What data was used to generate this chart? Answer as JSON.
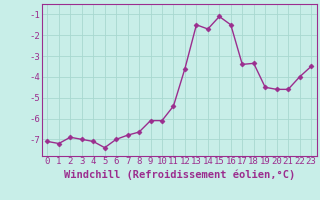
{
  "x": [
    0,
    1,
    2,
    3,
    4,
    5,
    6,
    7,
    8,
    9,
    10,
    11,
    12,
    13,
    14,
    15,
    16,
    17,
    18,
    19,
    20,
    21,
    22,
    23
  ],
  "y": [
    -7.1,
    -7.2,
    -6.9,
    -7.0,
    -7.1,
    -7.4,
    -7.0,
    -6.8,
    -6.65,
    -6.1,
    -6.1,
    -5.4,
    -3.6,
    -1.5,
    -1.7,
    -1.1,
    -1.5,
    -3.4,
    -3.35,
    -4.5,
    -4.6,
    -4.6,
    -4.0,
    -3.5
  ],
  "line_color": "#9B2D8E",
  "marker": "D",
  "marker_size": 2.5,
  "bg_color": "#C8EEE8",
  "grid_color": "#A8D8D0",
  "xlabel": "Windchill (Refroidissement éolien,°C)",
  "xlabel_fontsize": 7.5,
  "ylim": [
    -7.8,
    -0.5
  ],
  "xlim": [
    -0.5,
    23.5
  ],
  "yticks": [
    -7,
    -6,
    -5,
    -4,
    -3,
    -2,
    -1
  ],
  "xticks": [
    0,
    1,
    2,
    3,
    4,
    5,
    6,
    7,
    8,
    9,
    10,
    11,
    12,
    13,
    14,
    15,
    16,
    17,
    18,
    19,
    20,
    21,
    22,
    23
  ],
  "tick_fontsize": 6.5,
  "line_width": 1.0,
  "tick_color": "#9B2D8E",
  "label_color": "#9B2D8E"
}
